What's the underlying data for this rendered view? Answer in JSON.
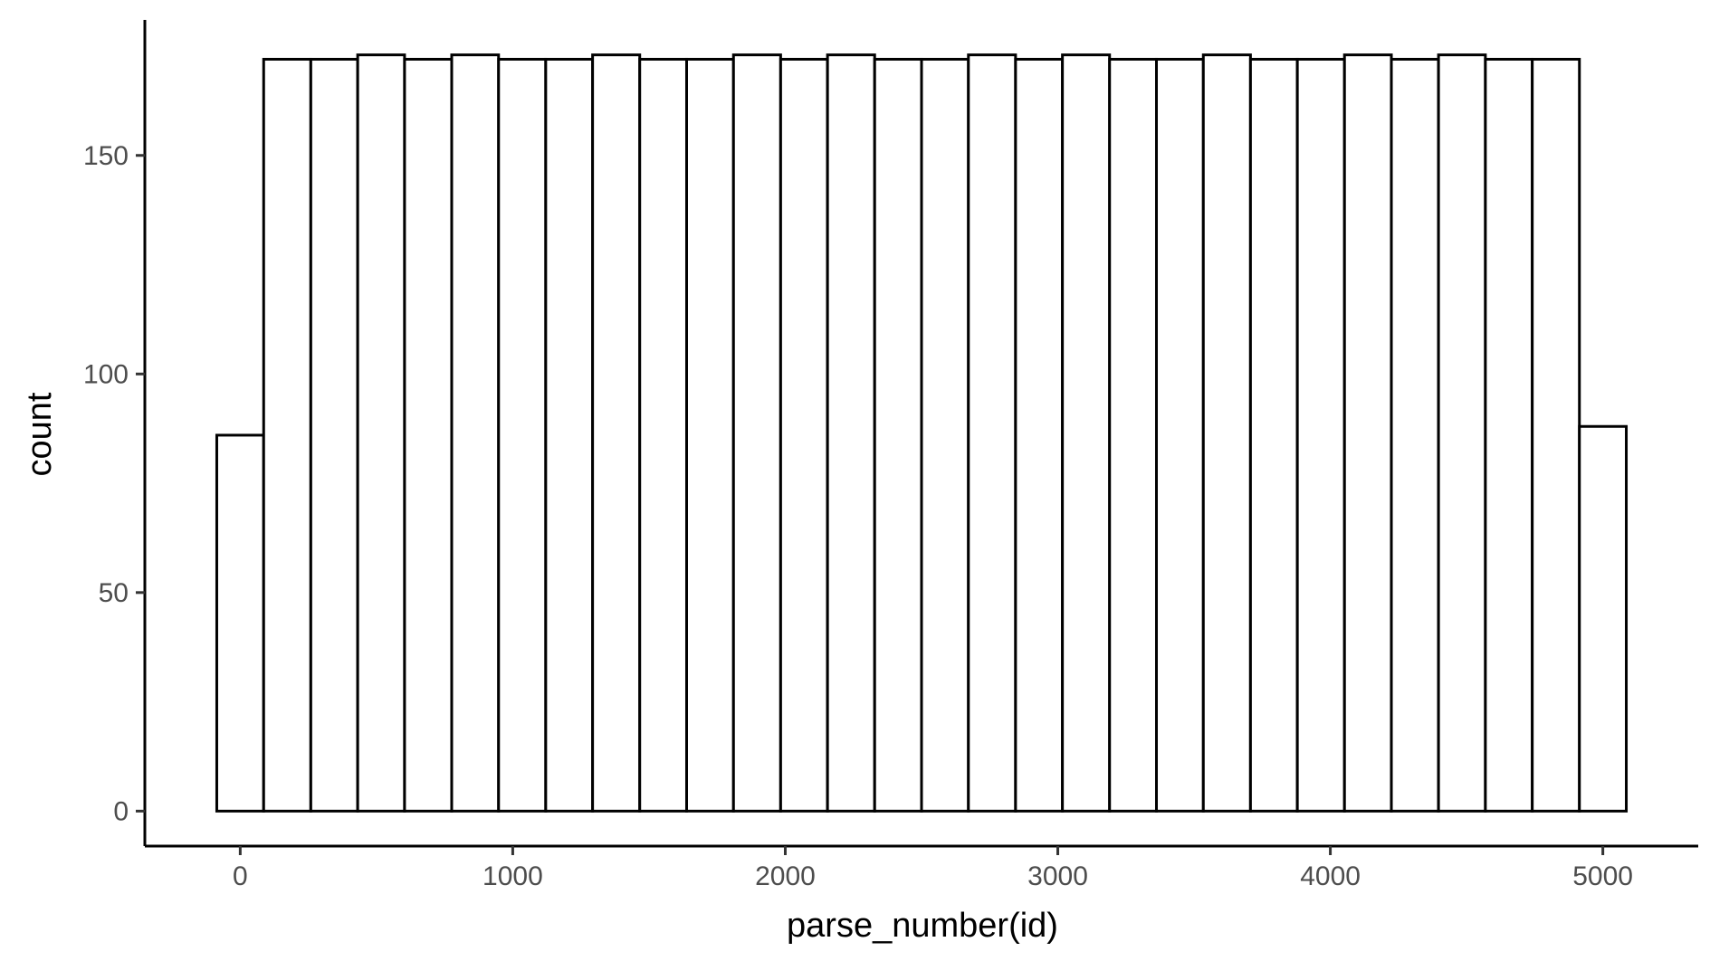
{
  "chart_data": {
    "type": "bar",
    "title": "",
    "xlabel": "parse_number(id)",
    "ylabel": "count",
    "xlim": [
      -350,
      5350
    ],
    "ylim": [
      -8,
      181
    ],
    "x_ticks": [
      0,
      1000,
      2000,
      3000,
      4000,
      5000
    ],
    "y_ticks": [
      0,
      50,
      100,
      150
    ],
    "grid": false,
    "legend": "none",
    "bar_fill": "#ffffff",
    "bar_outline": "#000000",
    "bins": [
      {
        "x0": -86,
        "x1": 86,
        "count": 86
      },
      {
        "x0": 86,
        "x1": 259,
        "count": 172
      },
      {
        "x0": 259,
        "x1": 431,
        "count": 172
      },
      {
        "x0": 431,
        "x1": 603,
        "count": 173
      },
      {
        "x0": 603,
        "x1": 776,
        "count": 172
      },
      {
        "x0": 776,
        "x1": 948,
        "count": 173
      },
      {
        "x0": 948,
        "x1": 1121,
        "count": 172
      },
      {
        "x0": 1121,
        "x1": 1293,
        "count": 172
      },
      {
        "x0": 1293,
        "x1": 1466,
        "count": 173
      },
      {
        "x0": 1466,
        "x1": 1638,
        "count": 172
      },
      {
        "x0": 1638,
        "x1": 1810,
        "count": 172
      },
      {
        "x0": 1810,
        "x1": 1983,
        "count": 173
      },
      {
        "x0": 1983,
        "x1": 2155,
        "count": 172
      },
      {
        "x0": 2155,
        "x1": 2328,
        "count": 173
      },
      {
        "x0": 2328,
        "x1": 2500,
        "count": 172
      },
      {
        "x0": 2500,
        "x1": 2672,
        "count": 172
      },
      {
        "x0": 2672,
        "x1": 2845,
        "count": 173
      },
      {
        "x0": 2845,
        "x1": 3017,
        "count": 172
      },
      {
        "x0": 3017,
        "x1": 3190,
        "count": 173
      },
      {
        "x0": 3190,
        "x1": 3362,
        "count": 172
      },
      {
        "x0": 3362,
        "x1": 3534,
        "count": 172
      },
      {
        "x0": 3534,
        "x1": 3707,
        "count": 173
      },
      {
        "x0": 3707,
        "x1": 3879,
        "count": 172
      },
      {
        "x0": 3879,
        "x1": 4052,
        "count": 172
      },
      {
        "x0": 4052,
        "x1": 4224,
        "count": 173
      },
      {
        "x0": 4224,
        "x1": 4397,
        "count": 172
      },
      {
        "x0": 4397,
        "x1": 4569,
        "count": 173
      },
      {
        "x0": 4569,
        "x1": 4741,
        "count": 172
      },
      {
        "x0": 4741,
        "x1": 4914,
        "count": 172
      },
      {
        "x0": 4914,
        "x1": 5086,
        "count": 88
      }
    ]
  }
}
